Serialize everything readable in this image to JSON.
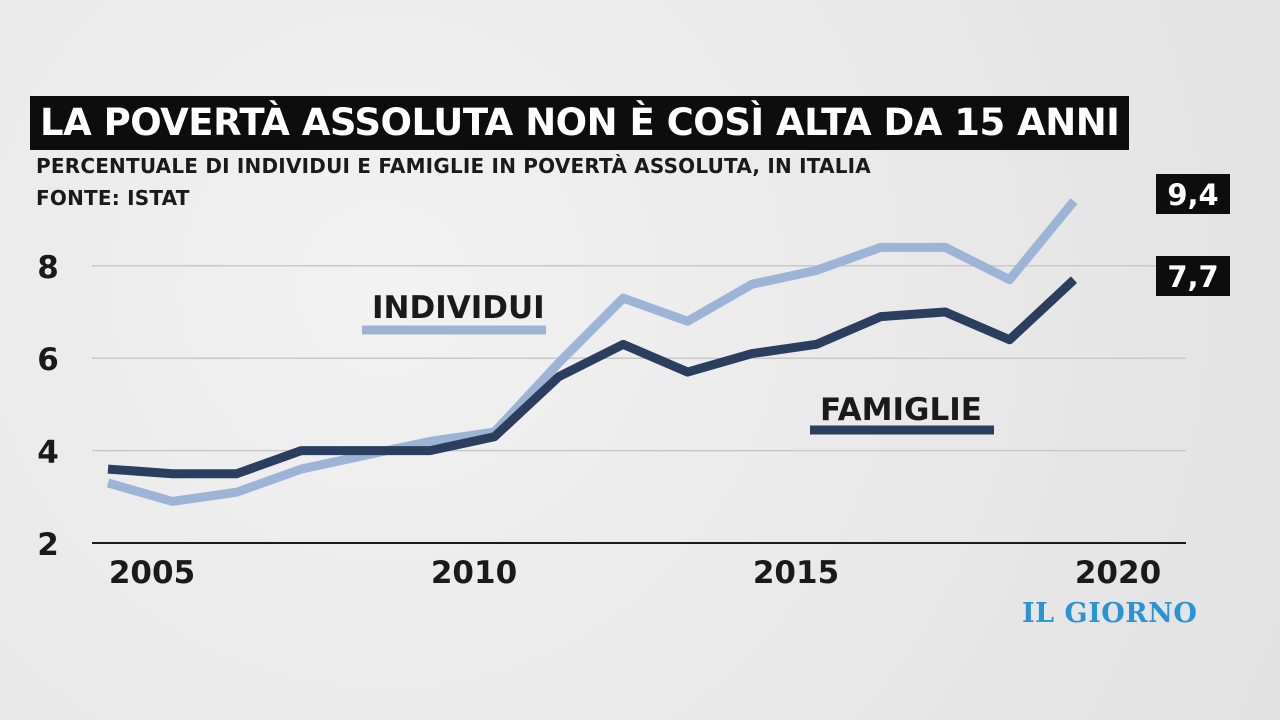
{
  "header": {
    "title": "LA POVERTÀ ASSOLUTA NON È COSÌ ALTA DA 15 ANNI",
    "subtitle": "PERCENTUALE DI INDIVIDUI E FAMIGLIE IN POVERTÀ ASSOLUTA, IN ITALIA",
    "source": "FONTE: ISTAT"
  },
  "brand": {
    "logo_text": "IL GIORNO",
    "logo_color": "#2a93d5"
  },
  "chart_data": {
    "type": "line",
    "x": [
      2005,
      2006,
      2007,
      2008,
      2009,
      2010,
      2011,
      2012,
      2013,
      2014,
      2015,
      2016,
      2017,
      2018,
      2019,
      2020,
      2021
    ],
    "series": [
      {
        "name": "INDIVIDUI",
        "color": "#9db4d6",
        "values": [
          3.3,
          2.9,
          3.1,
          3.6,
          3.9,
          4.2,
          4.4,
          5.9,
          7.3,
          6.8,
          7.6,
          7.9,
          8.4,
          8.4,
          7.7,
          9.4,
          null
        ]
      },
      {
        "name": "FAMIGLIE",
        "color": "#2b3e5e",
        "values": [
          3.6,
          3.5,
          3.5,
          4.0,
          4.0,
          4.0,
          4.3,
          5.6,
          6.3,
          5.7,
          6.1,
          6.3,
          6.9,
          7.0,
          6.4,
          7.7,
          null
        ]
      }
    ],
    "end_labels": [
      "9,4",
      "7,7"
    ],
    "x_ticks": [
      "2005",
      "2010",
      "2015",
      "2020"
    ],
    "y_ticks": [
      "2",
      "4",
      "6",
      "8"
    ],
    "ylim": [
      2,
      10
    ],
    "grid": true,
    "legend": "inline"
  }
}
